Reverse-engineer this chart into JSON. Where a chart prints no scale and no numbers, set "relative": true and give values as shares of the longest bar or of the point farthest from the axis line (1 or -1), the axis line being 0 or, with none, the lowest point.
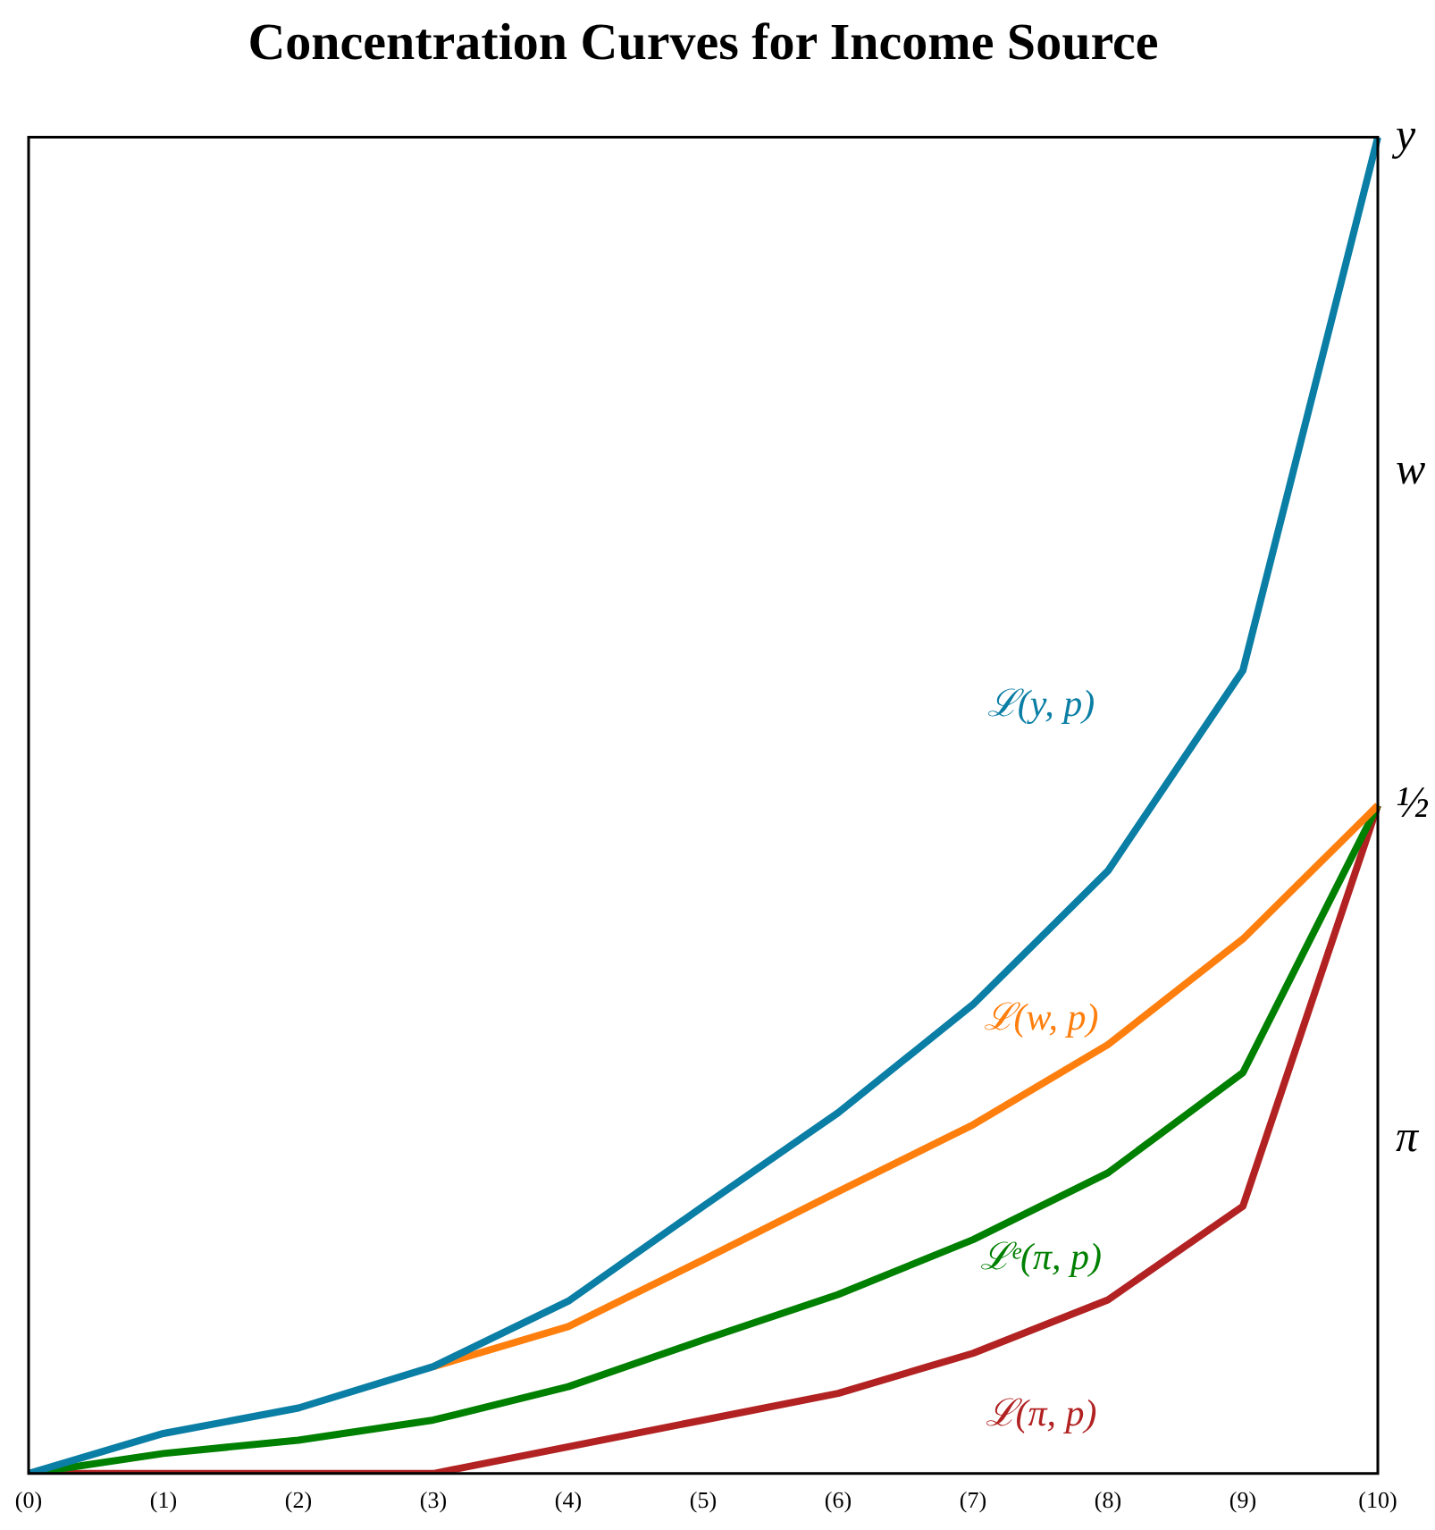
{
  "chart_data": {
    "type": "line",
    "title": "Concentration Curves for Income Source",
    "categories": [
      "(0)",
      "(1)",
      "(2)",
      "(3)",
      "(4)",
      "(5)",
      "(6)",
      "(7)",
      "(8)",
      "(9)",
      "(10)"
    ],
    "series": [
      {
        "name": "ℒ(y, p)",
        "color": "#0a7ea4",
        "values": [
          0,
          0.03,
          0.049,
          0.08,
          0.129,
          0.2,
          0.27,
          0.351,
          0.451,
          0.601,
          1
        ]
      },
      {
        "name": "ℒ(w, p)",
        "color": "#ff7f0e",
        "values": [
          null,
          null,
          null,
          0.08,
          0.11,
          0.16,
          0.211,
          0.261,
          0.321,
          0.4,
          0.5
        ]
      },
      {
        "name": "ℒᵉ(π, p)",
        "color": "#008000",
        "values": [
          0,
          0.015,
          0.025,
          0.04,
          0.065,
          0.1,
          0.134,
          0.175,
          0.225,
          0.3,
          0.5
        ]
      },
      {
        "name": "ℒ(π, p)",
        "color": "#b22222",
        "values": [
          0,
          0,
          0,
          0,
          0.02,
          0.04,
          0.06,
          0.09,
          0.13,
          0.2,
          0.5
        ]
      }
    ],
    "relative": true,
    "annotations": [
      "y",
      "w",
      "½",
      "π"
    ],
    "grid": false,
    "legend": false,
    "marker": "none",
    "line_style": "solid"
  }
}
